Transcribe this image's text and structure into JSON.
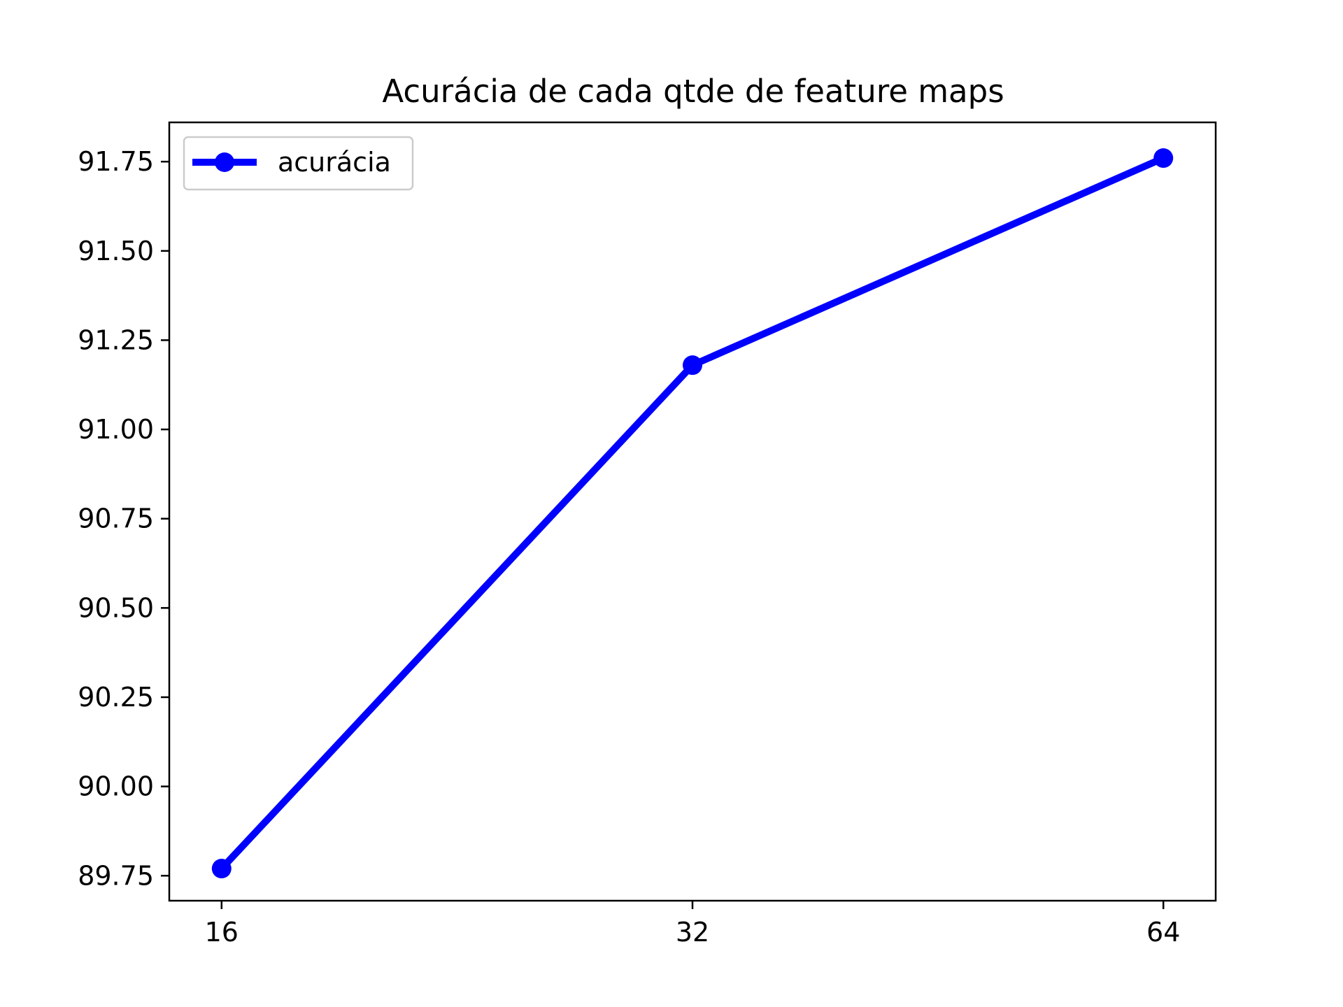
{
  "chart_data": {
    "type": "line",
    "title": "Acurácia de cada qtde de feature maps",
    "xlabel": "",
    "ylabel": "",
    "categories": [
      "16",
      "32",
      "64"
    ],
    "series": [
      {
        "name": "acurácia",
        "values": [
          89.77,
          91.18,
          91.76
        ],
        "color": "#0000ff",
        "marker": "circle"
      }
    ],
    "y_ticks": [
      "89.75",
      "90.00",
      "90.25",
      "90.50",
      "90.75",
      "91.00",
      "91.25",
      "91.50",
      "91.75"
    ],
    "ylim": [
      89.68,
      91.86
    ],
    "grid": false,
    "legend_position": "upper left"
  }
}
